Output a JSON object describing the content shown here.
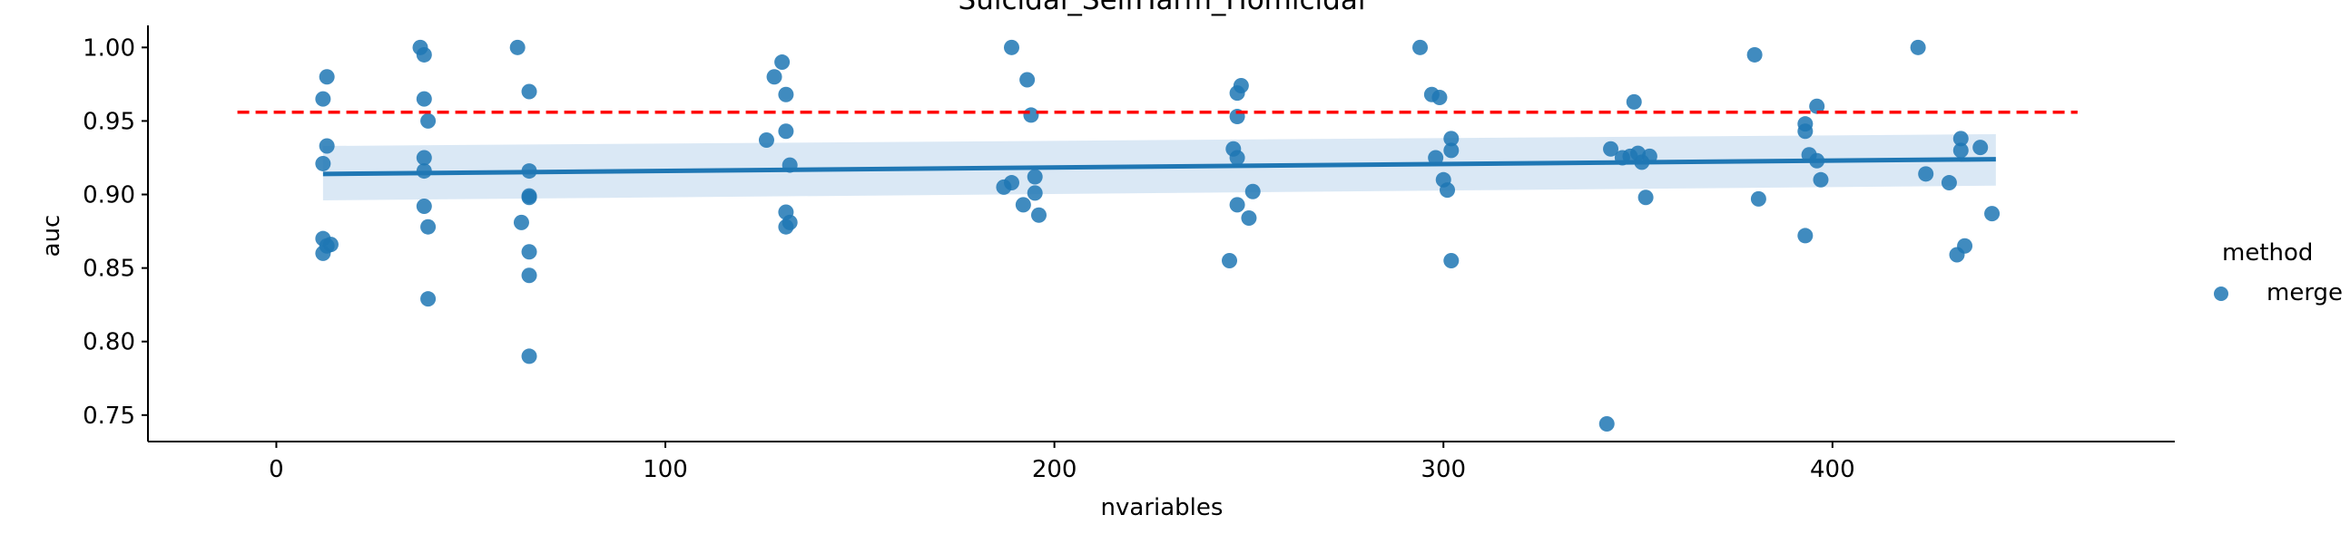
{
  "chart_data": {
    "type": "scatter",
    "title": "Suicidal_SelfHarm_Homicidal",
    "xlabel": "nvariables",
    "ylabel": "auc",
    "xlim": [
      -33,
      488
    ],
    "ylim": [
      0.732,
      1.015
    ],
    "xticks": [
      0,
      100,
      200,
      300,
      400
    ],
    "yticks": [
      0.75,
      0.8,
      0.85,
      0.9,
      0.95,
      1.0
    ],
    "xtick_labels": [
      "0",
      "100",
      "200",
      "300",
      "400"
    ],
    "ytick_labels": [
      "0.75",
      "0.80",
      "0.85",
      "0.90",
      "0.95",
      "1.00"
    ],
    "grid": false,
    "legend": {
      "title": "method",
      "entries": [
        "merge"
      ],
      "placement": "right"
    },
    "colors": {
      "points": "#1f77b4",
      "reference": "#ff0000",
      "band": "#c6dbef"
    },
    "series": [
      {
        "name": "merge",
        "points": [
          [
            12,
            0.965
          ],
          [
            13,
            0.98
          ],
          [
            13,
            0.933
          ],
          [
            12,
            0.921
          ],
          [
            12,
            0.87
          ],
          [
            14,
            0.866
          ],
          [
            12,
            0.86
          ],
          [
            13,
            0.865
          ],
          [
            37,
            1.0
          ],
          [
            38,
            0.995
          ],
          [
            38,
            0.965
          ],
          [
            39,
            0.95
          ],
          [
            38,
            0.925
          ],
          [
            38,
            0.916
          ],
          [
            38,
            0.892
          ],
          [
            39,
            0.878
          ],
          [
            39,
            0.829
          ],
          [
            62,
            1.0
          ],
          [
            65,
            0.97
          ],
          [
            65,
            0.916
          ],
          [
            65,
            0.899
          ],
          [
            65,
            0.898
          ],
          [
            63,
            0.881
          ],
          [
            65,
            0.861
          ],
          [
            65,
            0.845
          ],
          [
            65,
            0.79
          ],
          [
            130,
            0.99
          ],
          [
            128,
            0.98
          ],
          [
            131,
            0.968
          ],
          [
            131,
            0.943
          ],
          [
            126,
            0.937
          ],
          [
            132,
            0.92
          ],
          [
            131,
            0.888
          ],
          [
            132,
            0.881
          ],
          [
            131,
            0.878
          ],
          [
            189,
            1.0
          ],
          [
            193,
            0.978
          ],
          [
            194,
            0.954
          ],
          [
            195,
            0.912
          ],
          [
            189,
            0.908
          ],
          [
            187,
            0.905
          ],
          [
            195,
            0.901
          ],
          [
            192,
            0.893
          ],
          [
            196,
            0.886
          ],
          [
            248,
            0.974
          ],
          [
            247,
            0.969
          ],
          [
            247,
            0.953
          ],
          [
            246,
            0.931
          ],
          [
            247,
            0.925
          ],
          [
            251,
            0.902
          ],
          [
            247,
            0.893
          ],
          [
            250,
            0.884
          ],
          [
            245,
            0.855
          ],
          [
            294,
            1.0
          ],
          [
            297,
            0.968
          ],
          [
            299,
            0.966
          ],
          [
            302,
            0.938
          ],
          [
            302,
            0.93
          ],
          [
            298,
            0.925
          ],
          [
            300,
            0.91
          ],
          [
            301,
            0.903
          ],
          [
            302,
            0.855
          ],
          [
            342,
            0.744
          ],
          [
            343,
            0.931
          ],
          [
            346,
            0.925
          ],
          [
            348,
            0.926
          ],
          [
            350,
            0.928
          ],
          [
            351,
            0.922
          ],
          [
            353,
            0.926
          ],
          [
            349,
            0.963
          ],
          [
            352,
            0.898
          ],
          [
            380,
            0.995
          ],
          [
            396,
            0.96
          ],
          [
            393,
            0.948
          ],
          [
            393,
            0.943
          ],
          [
            394,
            0.927
          ],
          [
            396,
            0.923
          ],
          [
            397,
            0.91
          ],
          [
            381,
            0.897
          ],
          [
            393,
            0.872
          ],
          [
            422,
            1.0
          ],
          [
            433,
            0.938
          ],
          [
            433,
            0.93
          ],
          [
            438,
            0.932
          ],
          [
            424,
            0.914
          ],
          [
            430,
            0.908
          ],
          [
            441,
            0.887
          ],
          [
            434,
            0.865
          ],
          [
            432,
            0.859
          ]
        ]
      }
    ],
    "regression": {
      "x": [
        12,
        442
      ],
      "y": [
        0.914,
        0.924
      ],
      "band_lower": [
        0.896,
        0.906
      ],
      "band_upper": [
        0.933,
        0.941
      ]
    },
    "reference_line": {
      "y": 0.956,
      "x": [
        -10,
        463
      ],
      "style": "dashed"
    }
  }
}
